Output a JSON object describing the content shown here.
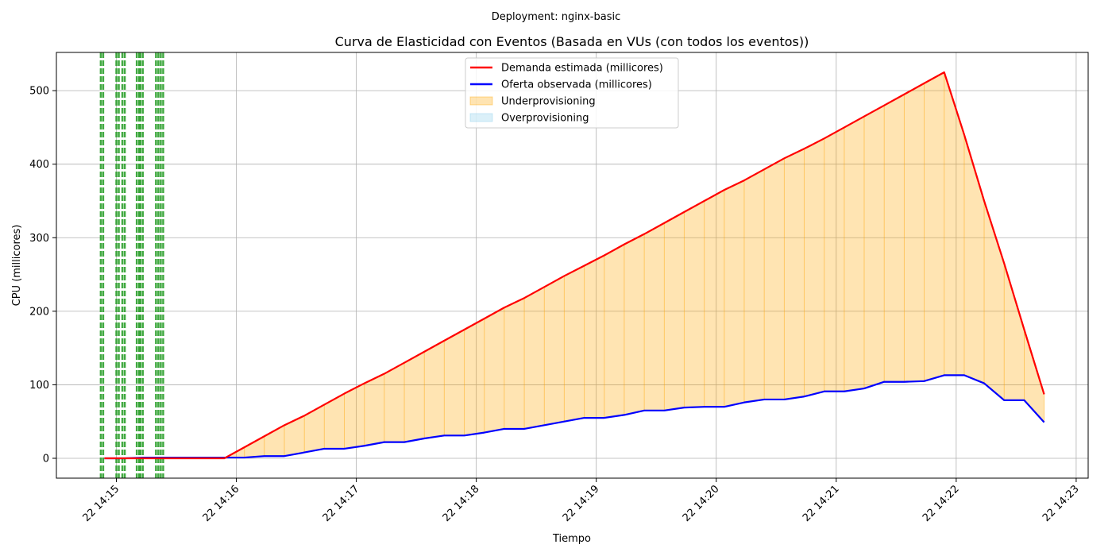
{
  "suptitle": "Deployment: nginx-basic",
  "chart_data": {
    "type": "line",
    "title": "Curva de Elasticidad con Eventos (Basada en VUs (con todos los eventos))",
    "xlabel": "Tiempo",
    "ylabel": "CPU (millicores)",
    "xlim": [
      "14:14.50",
      "14:23.10"
    ],
    "ylim": [
      -27,
      552
    ],
    "x_ticks": [
      "22 14:15",
      "22 14:16",
      "22 14:17",
      "22 14:18",
      "22 14:19",
      "22 14:20",
      "22 14:21",
      "22 14:22",
      "22 14:23"
    ],
    "y_ticks": [
      0,
      100,
      200,
      300,
      400,
      500
    ],
    "grid": true,
    "legend_position": "top-center",
    "colors": {
      "demand": "#ff0000",
      "supply": "#0000ff",
      "under_fill": "#ffa500",
      "over_fill": "#87ceeb",
      "events": "#2ca02c"
    },
    "x_minutes": [
      14.9,
      15.067,
      15.233,
      15.4,
      15.567,
      15.733,
      15.9,
      16.067,
      16.233,
      16.4,
      16.567,
      16.733,
      16.9,
      17.067,
      17.233,
      17.4,
      17.567,
      17.733,
      17.9,
      18.067,
      18.233,
      18.4,
      18.567,
      18.733,
      18.9,
      19.067,
      19.233,
      19.4,
      19.567,
      19.733,
      19.9,
      20.067,
      20.233,
      20.4,
      20.567,
      20.733,
      20.9,
      21.067,
      21.233,
      21.4,
      21.567,
      21.733,
      21.9,
      22.067,
      22.233,
      22.4,
      22.567,
      22.733
    ],
    "series": [
      {
        "name": "Demanda estimada (millicores)",
        "color": "#ff0000",
        "values": [
          0,
          0,
          0,
          0,
          0,
          0,
          0,
          15,
          30,
          45,
          58,
          73,
          88,
          102,
          115,
          130,
          145,
          160,
          175,
          190,
          205,
          218,
          233,
          248,
          262,
          276,
          291,
          305,
          320,
          335,
          350,
          365,
          378,
          393,
          408,
          421,
          435,
          450,
          465,
          480,
          495,
          510,
          525,
          440,
          350,
          265,
          175,
          87
        ]
      },
      {
        "name": "Oferta observada (millicores)",
        "color": "#0000ff",
        "values": [
          0,
          0,
          1,
          1,
          1,
          1,
          1,
          1,
          3,
          3,
          8,
          13,
          13,
          17,
          22,
          22,
          27,
          31,
          31,
          35,
          40,
          40,
          45,
          50,
          55,
          55,
          59,
          65,
          65,
          69,
          70,
          70,
          76,
          80,
          80,
          84,
          91,
          91,
          95,
          104,
          104,
          105,
          113,
          113,
          102,
          79,
          79,
          49
        ]
      }
    ],
    "fill_legend": [
      "Underprovisioning",
      "Overprovisioning"
    ],
    "event_lines_minutes": [
      14.87,
      14.89,
      15.0,
      15.02,
      15.05,
      15.07,
      15.17,
      15.19,
      15.2,
      15.22,
      15.33,
      15.35,
      15.37,
      15.39
    ]
  }
}
